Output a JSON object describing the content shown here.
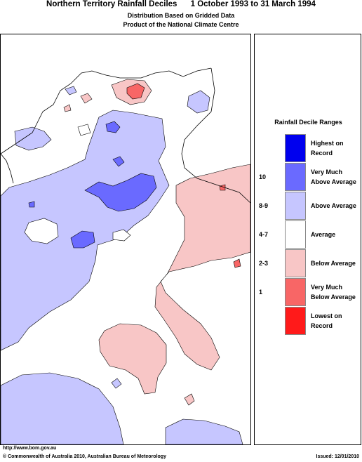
{
  "header": {
    "title": "Northern Territory Rainfall Deciles      1 October 1993 to 31 March 1994",
    "subtitle_line1": "Distribution Based on Gridded Data",
    "subtitle_line2": "Product of the National Climate Centre"
  },
  "legend": {
    "title": "Rainfall Decile Ranges",
    "entries": [
      {
        "code": "",
        "label": "Highest on\nRecord",
        "color": "#0000ee"
      },
      {
        "code": "10",
        "label": "Very Much\nAbove Average",
        "color": "#6a6aff"
      },
      {
        "code": "8-9",
        "label": "Above Average",
        "color": "#c6c6ff"
      },
      {
        "code": "4-7",
        "label": "Average",
        "color": "#ffffff"
      },
      {
        "code": "2-3",
        "label": "Below Average",
        "color": "#f8c6c6"
      },
      {
        "code": "1",
        "label": "Very Much\nBelow Average",
        "color": "#f86666"
      },
      {
        "code": "",
        "label": "Lowest on\nRecord",
        "color": "#ff1a1a"
      }
    ]
  },
  "footer": {
    "url": "http://www.bom.gov.au",
    "copyright": "© Commonwealth of Australia 2010, Australian Bureau of Meteorology",
    "issued": "Issued: 12/01/2010"
  },
  "map_colors": {
    "above": "#c6c6ff",
    "very_much_above": "#6a6aff",
    "below": "#f8c6c6",
    "very_much_below": "#f86666",
    "outline": "#000000"
  }
}
